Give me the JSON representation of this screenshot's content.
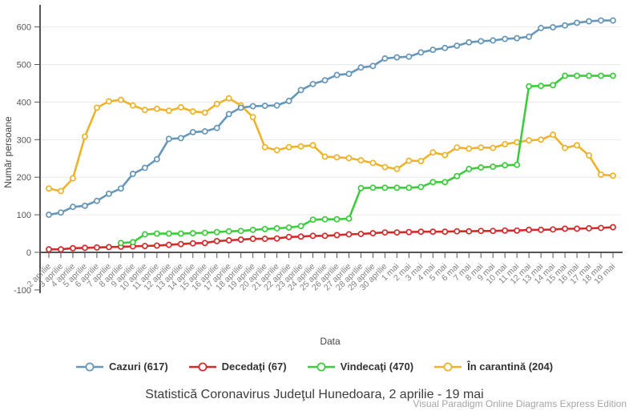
{
  "title": "Statistică Coronavirus Judeţul Hunedoara, 2 aprilie - 19 mai",
  "watermark": "Visual Paradigm Online Diagrams Express Edition",
  "chart_data": {
    "type": "line",
    "title": "Statistică Coronavirus Judeţul Hunedoara, 2 aprilie - 19 mai",
    "xlabel": "Data",
    "ylabel": "Număr persoane",
    "ylim": [
      -100,
      650
    ],
    "yticks": [
      -100,
      0,
      100,
      200,
      300,
      400,
      500,
      600
    ],
    "grid": true,
    "legend_position": "bottom",
    "marker_style": "open-circle",
    "categories": [
      "2 aprilie",
      "3 aprilie",
      "4 aprilie",
      "5 aprilie",
      "6 aprilie",
      "7 aprilie",
      "8 aprilie",
      "9 aprilie",
      "10 aprilie",
      "11 aprilie",
      "12 aprilie",
      "13 aprilie",
      "14 aprilie",
      "15 aprilie",
      "16 aprilie",
      "17 aprilie",
      "18 aprilie",
      "19 aprilie",
      "20 aprilie",
      "21 aprilie",
      "22 aprilie",
      "23 aprilie",
      "24 aprilie",
      "25 aprilie",
      "26 aprilie",
      "27 aprilie",
      "28 aprilie",
      "29 aprilie",
      "30 aprilie",
      "1 mai",
      "2 mai",
      "3 mai",
      "4 mai",
      "5 mai",
      "6 mai",
      "7 mai",
      "8 mai",
      "9 mai",
      "10 mai",
      "11 mai",
      "12 mai",
      "13 mai",
      "14 mai",
      "15 mai",
      "16 mai",
      "17 mai",
      "18 mai",
      "19 mai"
    ],
    "series": [
      {
        "id": "cazuri",
        "name": "Cazuri (617)",
        "color": "#6797b8",
        "values": [
          100,
          106,
          121,
          124,
          137,
          156,
          170,
          209,
          225,
          248,
          302,
          304,
          320,
          322,
          331,
          368,
          385,
          389,
          390,
          391,
          403,
          432,
          448,
          458,
          472,
          475,
          492,
          496,
          516,
          519,
          521,
          532,
          539,
          544,
          550,
          559,
          562,
          564,
          568,
          570,
          574,
          597,
          599,
          604,
          611,
          615,
          617,
          617
        ]
      },
      {
        "id": "decedati",
        "name": "Decedaţi (67)",
        "color": "#d22b2b",
        "values": [
          8,
          8,
          11,
          12,
          13,
          14,
          15,
          16,
          17,
          18,
          20,
          22,
          24,
          25,
          30,
          32,
          34,
          36,
          36,
          37,
          41,
          42,
          44,
          44,
          46,
          48,
          49,
          51,
          53,
          53,
          54,
          55,
          55,
          55,
          56,
          56,
          57,
          57,
          58,
          58,
          60,
          60,
          61,
          63,
          63,
          64,
          65,
          67
        ]
      },
      {
        "id": "vindecati",
        "name": "Vindecaţi (470)",
        "color": "#3dcc3d",
        "values": [
          null,
          null,
          null,
          null,
          null,
          null,
          25,
          27,
          48,
          50,
          50,
          50,
          51,
          52,
          54,
          56,
          57,
          60,
          62,
          64,
          66,
          70,
          87,
          88,
          88,
          90,
          171,
          172,
          172,
          172,
          172,
          174,
          187,
          187,
          203,
          222,
          226,
          228,
          232,
          233,
          442,
          443,
          445,
          470,
          470,
          470,
          470,
          470
        ]
      },
      {
        "id": "in-carantina",
        "name": "În carantină (204)",
        "color": "#edb32a",
        "values": [
          170,
          163,
          197,
          308,
          385,
          402,
          406,
          391,
          379,
          382,
          377,
          386,
          375,
          372,
          395,
          410,
          391,
          360,
          280,
          272,
          280,
          282,
          285,
          255,
          253,
          251,
          245,
          238,
          227,
          222,
          244,
          243,
          266,
          259,
          279,
          276,
          279,
          278,
          288,
          293,
          298,
          300,
          313,
          278,
          285,
          258,
          207,
          204
        ]
      }
    ]
  }
}
